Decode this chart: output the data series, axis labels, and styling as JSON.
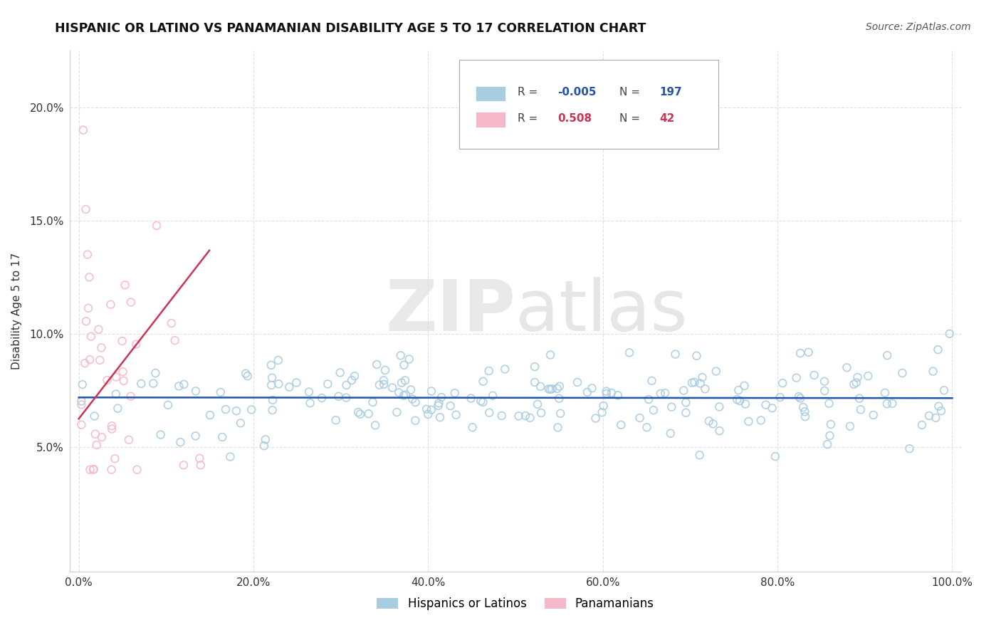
{
  "title": "HISPANIC OR LATINO VS PANAMANIAN DISABILITY AGE 5 TO 17 CORRELATION CHART",
  "source": "Source: ZipAtlas.com",
  "ylabel": "Disability Age 5 to 17",
  "xlim": [
    -0.01,
    1.01
  ],
  "ylim": [
    -0.005,
    0.225
  ],
  "yticks": [
    0.05,
    0.1,
    0.15,
    0.2
  ],
  "ytick_labels": [
    "5.0%",
    "10.0%",
    "15.0%",
    "20.0%"
  ],
  "xticks": [
    0.0,
    0.2,
    0.4,
    0.6,
    0.8,
    1.0
  ],
  "xtick_labels": [
    "0.0%",
    "20.0%",
    "40.0%",
    "60.0%",
    "80.0%",
    "100.0%"
  ],
  "watermark_zip": "ZIP",
  "watermark_atlas": "atlas",
  "legend_r1_label": "R = ",
  "legend_v1": "-0.005",
  "legend_n1_label": "N = ",
  "legend_c1": "197",
  "legend_r2_label": "R =  ",
  "legend_v2": "0.508",
  "legend_n2_label": "N = ",
  "legend_c2": "42",
  "blue_color": "#a8cce0",
  "pink_color": "#f5b8c8",
  "blue_line_color": "#2255aa",
  "pink_line_color": "#cc3355",
  "background_color": "#ffffff",
  "grid_color": "#dddddd",
  "title_color": "#111111",
  "source_color": "#555555",
  "label_color": "#333333",
  "blue_legend_color": "#2255aa",
  "pink_legend_color": "#cc3355"
}
